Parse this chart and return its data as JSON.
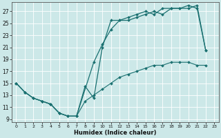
{
  "xlabel": "Humidex (Indice chaleur)",
  "bg_color": "#cce8e8",
  "grid_color": "#ffffff",
  "line_color": "#1a7070",
  "xlim": [
    -0.5,
    23.5
  ],
  "ylim": [
    8.5,
    28.5
  ],
  "xticks": [
    0,
    1,
    2,
    3,
    4,
    5,
    6,
    7,
    8,
    9,
    10,
    11,
    12,
    13,
    14,
    15,
    16,
    17,
    18,
    19,
    20,
    21,
    22,
    23
  ],
  "yticks": [
    9,
    11,
    13,
    15,
    17,
    19,
    21,
    23,
    25,
    27
  ],
  "line1_x": [
    0,
    1,
    2,
    3,
    4,
    5,
    6,
    7,
    9,
    10,
    11,
    12,
    13,
    14,
    15,
    16,
    17,
    18,
    19,
    20,
    21,
    22
  ],
  "line1_y": [
    15,
    13.5,
    12.5,
    12,
    11.5,
    10,
    9.5,
    9.5,
    18.5,
    21.5,
    24,
    25.5,
    25.5,
    26,
    26.5,
    27,
    26.5,
    27.5,
    27.5,
    27.5,
    28,
    20.5
  ],
  "line2_x": [
    0,
    1,
    2,
    3,
    4,
    5,
    6,
    7,
    8,
    9,
    10,
    11,
    12,
    13,
    14,
    15,
    16,
    17,
    18,
    19,
    20,
    21,
    22
  ],
  "line2_y": [
    15,
    13.5,
    12.5,
    12,
    11.5,
    10,
    9.5,
    9.5,
    14.5,
    12.5,
    21,
    25.5,
    25.5,
    26,
    26.5,
    27,
    26.5,
    27.5,
    27.5,
    27.5,
    28,
    27.5,
    20.5
  ],
  "line3_x": [
    0,
    1,
    2,
    3,
    4,
    5,
    6,
    7,
    8,
    9,
    10,
    11,
    12,
    13,
    14,
    15,
    16,
    17,
    18,
    19,
    20,
    21,
    22
  ],
  "line3_y": [
    15,
    13.5,
    12.5,
    12,
    11.5,
    10,
    9.5,
    9.5,
    12,
    13,
    14,
    15,
    16,
    16.5,
    17,
    17.5,
    18,
    18,
    18.5,
    18.5,
    18.5,
    18,
    18
  ]
}
